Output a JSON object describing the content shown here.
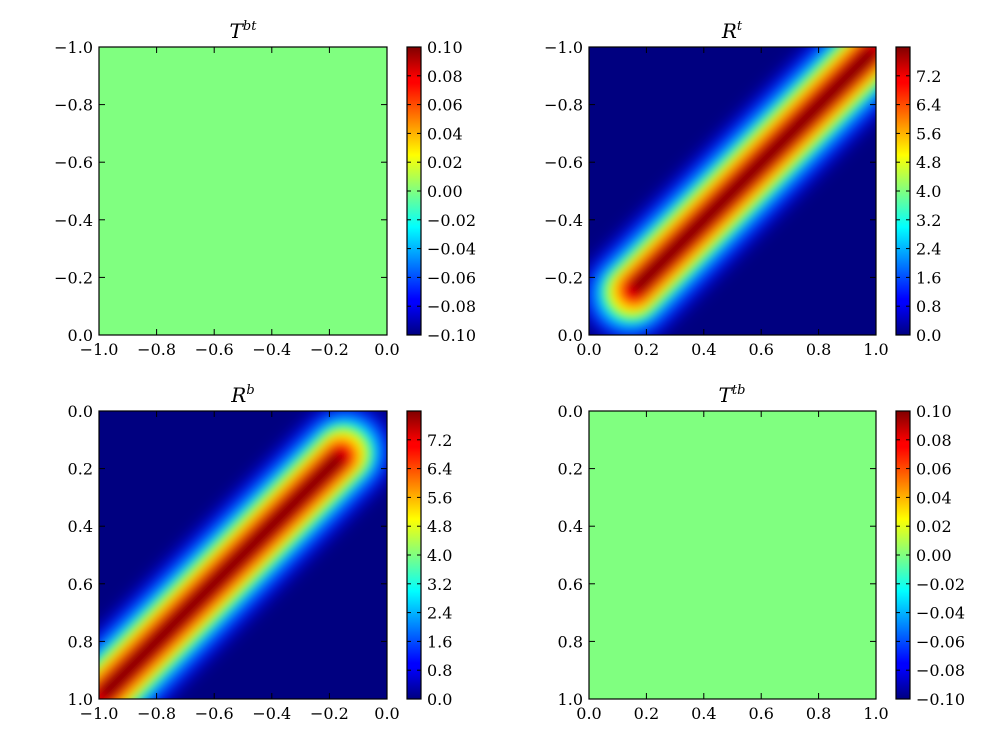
{
  "chart_data": [
    {
      "type": "heatmap",
      "title": "T",
      "title_sup": "bt",
      "pattern": "constant",
      "value": 0.0,
      "fill_color": "#80ff80",
      "x_ticks": [
        "−1.0",
        "−0.8",
        "−0.6",
        "−0.4",
        "−0.2",
        "0.0"
      ],
      "xlim": [
        -1.0,
        0.0
      ],
      "y_ticks": [
        "−1.0",
        "−0.8",
        "−0.6",
        "−0.4",
        "−0.2",
        "0.0"
      ],
      "ylim": [
        -1.0,
        0.0
      ],
      "colorbar_ticks": [
        "0.10",
        "0.08",
        "0.06",
        "0.04",
        "0.02",
        "0.00",
        "−0.02",
        "−0.04",
        "−0.06",
        "−0.08",
        "−0.10"
      ],
      "colorbar_range": [
        -0.1,
        0.1
      ],
      "colormap": "jet"
    },
    {
      "type": "heatmap",
      "title": "R",
      "title_sup": "t",
      "pattern": "diagonal_ridge",
      "x_ticks": [
        "0.0",
        "0.2",
        "0.4",
        "0.6",
        "0.8",
        "1.0"
      ],
      "xlim": [
        0.0,
        1.0
      ],
      "y_ticks": [
        "−1.0",
        "−0.8",
        "−0.6",
        "−0.4",
        "−0.2",
        "0.0"
      ],
      "ylim": [
        -1.0,
        0.0
      ],
      "colorbar_ticks": [
        "7.2",
        "6.4",
        "5.6",
        "4.8",
        "4.0",
        "3.2",
        "2.4",
        "1.6",
        "0.8",
        "0.0"
      ],
      "colorbar_range": [
        0.0,
        8.0
      ],
      "colormap": "jet"
    },
    {
      "type": "heatmap",
      "title": "R",
      "title_sup": "b",
      "pattern": "diagonal_ridge",
      "x_ticks": [
        "−1.0",
        "−0.8",
        "−0.6",
        "−0.4",
        "−0.2",
        "0.0"
      ],
      "xlim": [
        -1.0,
        0.0
      ],
      "y_ticks": [
        "0.0",
        "0.2",
        "0.4",
        "0.6",
        "0.8",
        "1.0"
      ],
      "ylim": [
        0.0,
        1.0
      ],
      "colorbar_ticks": [
        "7.2",
        "6.4",
        "5.6",
        "4.8",
        "4.0",
        "3.2",
        "2.4",
        "1.6",
        "0.8",
        "0.0"
      ],
      "colorbar_range": [
        0.0,
        8.0
      ],
      "colormap": "jet"
    },
    {
      "type": "heatmap",
      "title": "T",
      "title_sup": "tb",
      "pattern": "constant",
      "value": 0.0,
      "fill_color": "#80ff80",
      "x_ticks": [
        "0.0",
        "0.2",
        "0.4",
        "0.6",
        "0.8",
        "1.0"
      ],
      "xlim": [
        0.0,
        1.0
      ],
      "y_ticks": [
        "0.0",
        "0.2",
        "0.4",
        "0.6",
        "0.8",
        "1.0"
      ],
      "ylim": [
        0.0,
        1.0
      ],
      "colorbar_ticks": [
        "0.10",
        "0.08",
        "0.06",
        "0.04",
        "0.02",
        "0.00",
        "−0.02",
        "−0.04",
        "−0.06",
        "−0.08",
        "−0.10"
      ],
      "colorbar_range": [
        -0.1,
        0.1
      ],
      "colormap": "jet"
    }
  ]
}
